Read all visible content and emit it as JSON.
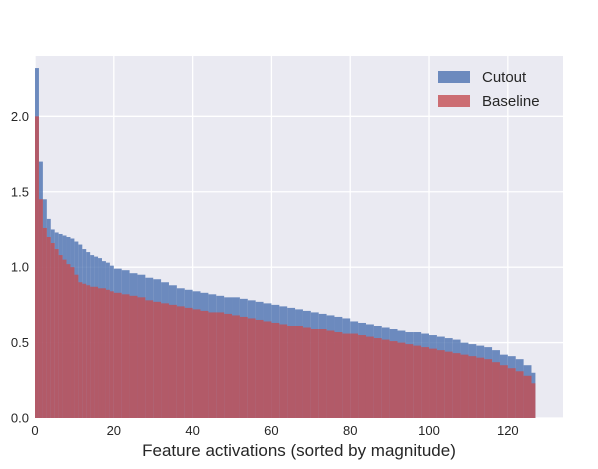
{
  "chart_data": {
    "type": "bar",
    "title": "",
    "xlabel": "Feature activations (sorted by magnitude)",
    "ylabel": "",
    "xlim": [
      0,
      134
    ],
    "ylim": [
      0,
      2.4
    ],
    "x_ticks": [
      0,
      20,
      40,
      60,
      80,
      100,
      120
    ],
    "y_ticks": [
      0.0,
      0.5,
      1.0,
      1.5,
      2.0
    ],
    "x_tick_labels": [
      "0",
      "20",
      "40",
      "60",
      "80",
      "100",
      "120"
    ],
    "y_tick_labels": [
      "0.0",
      "0.5",
      "1.0",
      "1.5",
      "2.0"
    ],
    "grid": true,
    "legend_position": "top-right",
    "background": "#eaeaf2",
    "series": [
      {
        "name": "Cutout",
        "color": "#4c72b0",
        "x": [
          0,
          1,
          2,
          3,
          4,
          5,
          6,
          7,
          8,
          9,
          10,
          11,
          12,
          13,
          14,
          15,
          16,
          17,
          18,
          19,
          20,
          22,
          24,
          26,
          28,
          30,
          32,
          34,
          36,
          38,
          40,
          42,
          44,
          46,
          48,
          50,
          52,
          54,
          56,
          58,
          60,
          62,
          64,
          66,
          68,
          70,
          72,
          74,
          76,
          78,
          80,
          82,
          84,
          86,
          88,
          90,
          92,
          94,
          96,
          98,
          100,
          102,
          104,
          106,
          108,
          110,
          112,
          114,
          116,
          118,
          120,
          122,
          124,
          126
        ],
        "values": [
          2.32,
          1.7,
          1.45,
          1.32,
          1.25,
          1.23,
          1.22,
          1.21,
          1.2,
          1.19,
          1.17,
          1.15,
          1.12,
          1.1,
          1.08,
          1.07,
          1.06,
          1.04,
          1.03,
          1.01,
          0.99,
          0.98,
          0.96,
          0.95,
          0.93,
          0.92,
          0.9,
          0.88,
          0.86,
          0.85,
          0.84,
          0.83,
          0.82,
          0.81,
          0.8,
          0.8,
          0.79,
          0.78,
          0.77,
          0.76,
          0.75,
          0.74,
          0.73,
          0.72,
          0.71,
          0.7,
          0.69,
          0.68,
          0.67,
          0.66,
          0.64,
          0.63,
          0.62,
          0.61,
          0.6,
          0.59,
          0.58,
          0.57,
          0.57,
          0.56,
          0.55,
          0.54,
          0.53,
          0.52,
          0.5,
          0.49,
          0.48,
          0.47,
          0.45,
          0.42,
          0.41,
          0.39,
          0.35,
          0.3
        ]
      },
      {
        "name": "Baseline",
        "color": "#c44e52",
        "x": [
          0,
          1,
          2,
          3,
          4,
          5,
          6,
          7,
          8,
          9,
          10,
          11,
          12,
          13,
          14,
          15,
          16,
          17,
          18,
          19,
          20,
          22,
          24,
          26,
          28,
          30,
          32,
          34,
          36,
          38,
          40,
          42,
          44,
          46,
          48,
          50,
          52,
          54,
          56,
          58,
          60,
          62,
          64,
          66,
          68,
          70,
          72,
          74,
          76,
          78,
          80,
          82,
          84,
          86,
          88,
          90,
          92,
          94,
          96,
          98,
          100,
          102,
          104,
          106,
          108,
          110,
          112,
          114,
          116,
          118,
          120,
          122,
          124,
          126
        ],
        "values": [
          2.0,
          1.45,
          1.26,
          1.2,
          1.16,
          1.12,
          1.08,
          1.05,
          1.02,
          1.0,
          0.95,
          0.9,
          0.89,
          0.88,
          0.87,
          0.87,
          0.86,
          0.86,
          0.85,
          0.84,
          0.83,
          0.82,
          0.81,
          0.8,
          0.78,
          0.77,
          0.76,
          0.75,
          0.74,
          0.73,
          0.72,
          0.71,
          0.7,
          0.7,
          0.69,
          0.68,
          0.67,
          0.66,
          0.65,
          0.64,
          0.63,
          0.62,
          0.61,
          0.61,
          0.6,
          0.59,
          0.59,
          0.58,
          0.57,
          0.56,
          0.56,
          0.55,
          0.54,
          0.53,
          0.52,
          0.51,
          0.5,
          0.49,
          0.48,
          0.47,
          0.46,
          0.45,
          0.44,
          0.43,
          0.42,
          0.41,
          0.4,
          0.39,
          0.37,
          0.35,
          0.33,
          0.31,
          0.28,
          0.23
        ]
      }
    ]
  }
}
